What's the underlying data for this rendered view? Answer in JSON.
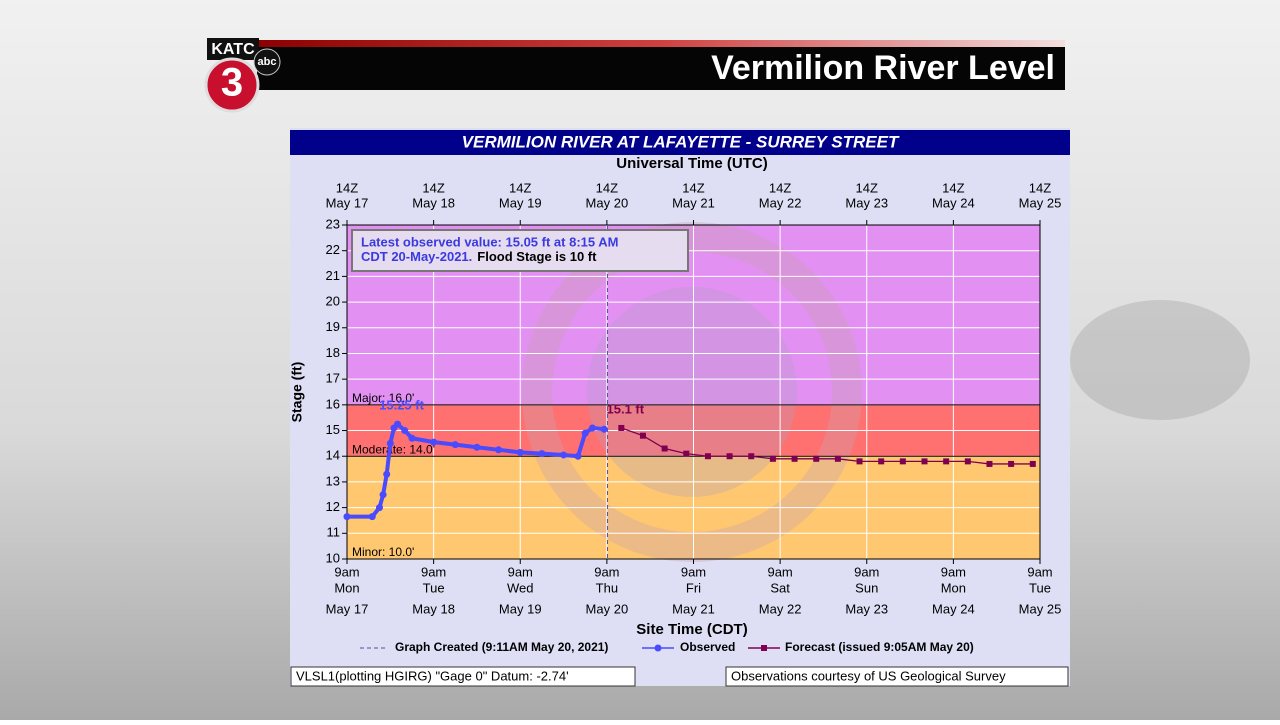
{
  "header": {
    "title": "Vermilion River Level",
    "logo_text": "KATC",
    "logo_number": "3",
    "logo_network": "abc"
  },
  "chart_data": {
    "type": "line",
    "title": "VERMILION RIVER AT LAFAYETTE - SURREY STREET",
    "top_axis_label": "Universal Time (UTC)",
    "x_label": "Site Time (CDT)",
    "y_label": "Stage (ft)",
    "xlim": [
      "2021-05-17 09:00",
      "2021-05-25 09:00"
    ],
    "xticks": [
      {
        "value": "2021-05-17 09:00",
        "label": "9am"
      },
      {
        "value": "2021-05-18 09:00",
        "label": "9am"
      },
      {
        "value": "2021-05-19 09:00",
        "label": "9am"
      },
      {
        "value": "2021-05-20 09:00",
        "label": "9am"
      },
      {
        "value": "2021-05-21 09:00",
        "label": "9am"
      },
      {
        "value": "2021-05-22 09:00",
        "label": "9am"
      },
      {
        "value": "2021-05-23 09:00",
        "label": "9am"
      },
      {
        "value": "2021-05-24 09:00",
        "label": "9am"
      },
      {
        "value": "2021-05-25 09:00",
        "label": "9am"
      }
    ],
    "xtick_weekdays": [
      "Mon",
      "Tue",
      "Wed",
      "Thu",
      "Fri",
      "Sat",
      "Sun",
      "Mon",
      "Tue"
    ],
    "xtick_dates": [
      "May 17",
      "May 18",
      "May 19",
      "May 20",
      "May 21",
      "May 22",
      "May 23",
      "May 24",
      "May 25"
    ],
    "x2ticks": [
      {
        "value": "2021-05-17 09:00",
        "label": "14Z"
      },
      {
        "value": "2021-05-18 09:00",
        "label": "14Z"
      },
      {
        "value": "2021-05-19 09:00",
        "label": "14Z"
      },
      {
        "value": "2021-05-20 09:00",
        "label": "14Z"
      },
      {
        "value": "2021-05-21 09:00",
        "label": "14Z"
      },
      {
        "value": "2021-05-22 09:00",
        "label": "14Z"
      },
      {
        "value": "2021-05-23 09:00",
        "label": "14Z"
      },
      {
        "value": "2021-05-24 09:00",
        "label": "14Z"
      },
      {
        "value": "2021-05-25 09:00",
        "label": "14Z"
      }
    ],
    "ylim": [
      10,
      23
    ],
    "yticks": [
      10,
      11,
      12,
      13,
      14,
      15,
      16,
      17,
      18,
      19,
      20,
      21,
      22,
      23
    ],
    "grid": true,
    "flood_stages": [
      {
        "label": "Minor: 10.0'",
        "value": 10,
        "color": "#ffc870"
      },
      {
        "label": "Moderate: 14.0'",
        "value": 14,
        "color": "#ff7070"
      },
      {
        "label": "Major: 16.0'",
        "value": 16,
        "color": "#e290f2"
      }
    ],
    "series": [
      {
        "name": "Observed",
        "color": "#4a4aff",
        "x": [
          "2021-05-17 09:00",
          "2021-05-17 16:00",
          "2021-05-17 18:00",
          "2021-05-17 19:00",
          "2021-05-17 20:00",
          "2021-05-17 21:00",
          "2021-05-17 22:00",
          "2021-05-17 23:00",
          "2021-05-18 01:00",
          "2021-05-18 03:00",
          "2021-05-18 09:00",
          "2021-05-18 15:00",
          "2021-05-18 21:00",
          "2021-05-19 03:00",
          "2021-05-19 09:00",
          "2021-05-19 15:00",
          "2021-05-19 21:00",
          "2021-05-20 01:00",
          "2021-05-20 03:00",
          "2021-05-20 05:00",
          "2021-05-20 08:15"
        ],
        "values": [
          11.65,
          11.65,
          12.0,
          12.5,
          13.3,
          14.5,
          15.1,
          15.25,
          15.0,
          14.7,
          14.55,
          14.45,
          14.35,
          14.25,
          14.15,
          14.1,
          14.05,
          14.0,
          14.9,
          15.1,
          15.05
        ]
      },
      {
        "name": "Forecast (issued 9:05AM May 20)",
        "color": "#800050",
        "x": [
          "2021-05-20 13:00",
          "2021-05-20 19:00",
          "2021-05-21 01:00",
          "2021-05-21 07:00",
          "2021-05-21 13:00",
          "2021-05-21 19:00",
          "2021-05-22 01:00",
          "2021-05-22 07:00",
          "2021-05-22 13:00",
          "2021-05-22 19:00",
          "2021-05-23 01:00",
          "2021-05-23 07:00",
          "2021-05-23 13:00",
          "2021-05-23 19:00",
          "2021-05-24 01:00",
          "2021-05-24 07:00",
          "2021-05-24 13:00",
          "2021-05-24 19:00",
          "2021-05-25 01:00",
          "2021-05-25 07:00"
        ],
        "values": [
          15.1,
          14.8,
          14.3,
          14.1,
          14.0,
          14.0,
          14.0,
          13.9,
          13.9,
          13.9,
          13.9,
          13.8,
          13.8,
          13.8,
          13.8,
          13.8,
          13.8,
          13.7,
          13.7,
          13.7
        ]
      }
    ],
    "annotations": [
      {
        "label": "15.25 ft",
        "x": "2021-05-17 23:00",
        "value": 15.25,
        "color": "#4a4aff"
      },
      {
        "label": "15.1 ft",
        "x": "2021-05-20 13:00",
        "value": 15.1,
        "color": "#800050"
      }
    ],
    "graph_created": {
      "label": "Graph Created (9:11AM May 20, 2021)",
      "x": "2021-05-20 09:11"
    },
    "info_box": {
      "line1": "Latest observed value: 15.05 ft at 8:15 AM",
      "line2": "CDT 20-May-2021.",
      "line2_tail": "Flood Stage is 10 ft"
    }
  },
  "footer": {
    "left": "VLSL1(plotting HGIRG) \"Gage 0\" Datum: -2.74'",
    "right": "Observations courtesy of US Geological Survey"
  }
}
